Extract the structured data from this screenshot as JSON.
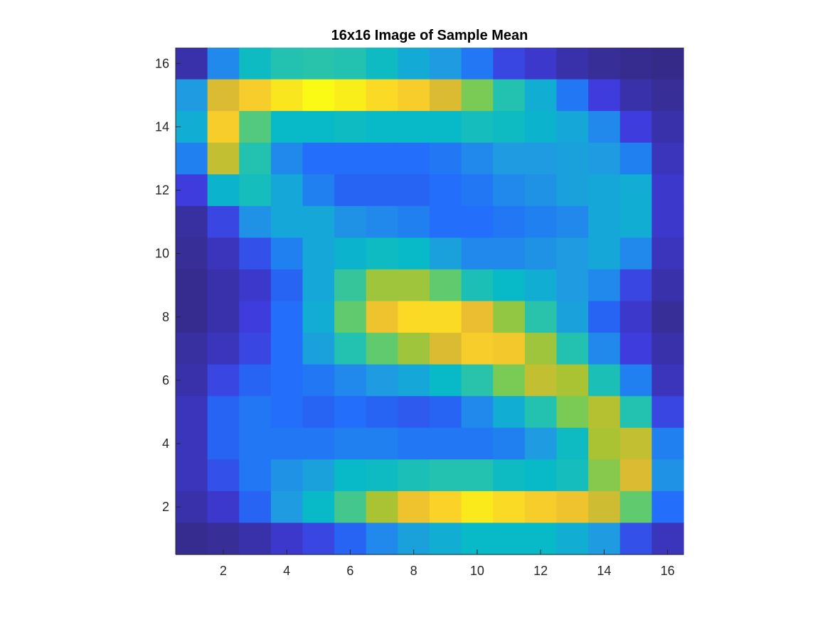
{
  "chart_data": {
    "type": "heatmap",
    "title": "16x16 Image of Sample Mean",
    "xlabel": "",
    "ylabel": "",
    "xlim": [
      0.5,
      16.5
    ],
    "ylim": [
      0.5,
      16.5
    ],
    "x_ticks": [
      2,
      4,
      6,
      8,
      10,
      12,
      14,
      16
    ],
    "y_ticks": [
      2,
      4,
      6,
      8,
      10,
      12,
      14,
      16
    ],
    "colormap": "parula",
    "value_range": [
      0,
      1
    ],
    "grid": false,
    "legend": "none",
    "rows_top_to_bottom_y": [
      16,
      15,
      14,
      13,
      12,
      11,
      10,
      9,
      8,
      7,
      6,
      5,
      4,
      3,
      2,
      1
    ],
    "values_top_to_bottom": [
      [
        0.04,
        0.26,
        0.42,
        0.48,
        0.5,
        0.48,
        0.42,
        0.35,
        0.3,
        0.22,
        0.12,
        0.08,
        0.04,
        0.02,
        0.01,
        0.0
      ],
      [
        0.3,
        0.78,
        0.88,
        0.95,
        1.0,
        0.97,
        0.92,
        0.88,
        0.78,
        0.62,
        0.48,
        0.36,
        0.22,
        0.1,
        0.04,
        0.02
      ],
      [
        0.36,
        0.88,
        0.56,
        0.4,
        0.4,
        0.42,
        0.4,
        0.4,
        0.4,
        0.44,
        0.42,
        0.38,
        0.34,
        0.26,
        0.1,
        0.04
      ],
      [
        0.24,
        0.74,
        0.48,
        0.26,
        0.2,
        0.2,
        0.2,
        0.2,
        0.22,
        0.26,
        0.3,
        0.3,
        0.32,
        0.3,
        0.24,
        0.06
      ],
      [
        0.1,
        0.38,
        0.44,
        0.34,
        0.24,
        0.18,
        0.18,
        0.18,
        0.2,
        0.22,
        0.26,
        0.28,
        0.32,
        0.34,
        0.36,
        0.08
      ],
      [
        0.03,
        0.12,
        0.28,
        0.34,
        0.34,
        0.28,
        0.26,
        0.24,
        0.2,
        0.2,
        0.22,
        0.24,
        0.26,
        0.34,
        0.36,
        0.08
      ],
      [
        0.02,
        0.06,
        0.14,
        0.24,
        0.34,
        0.38,
        0.42,
        0.4,
        0.32,
        0.26,
        0.26,
        0.28,
        0.3,
        0.34,
        0.26,
        0.06
      ],
      [
        0.01,
        0.04,
        0.08,
        0.18,
        0.34,
        0.52,
        0.68,
        0.68,
        0.58,
        0.46,
        0.4,
        0.36,
        0.3,
        0.26,
        0.12,
        0.04
      ],
      [
        0.01,
        0.04,
        0.1,
        0.2,
        0.36,
        0.58,
        0.84,
        0.92,
        0.92,
        0.82,
        0.66,
        0.5,
        0.32,
        0.18,
        0.08,
        0.02
      ],
      [
        0.03,
        0.06,
        0.12,
        0.2,
        0.32,
        0.48,
        0.58,
        0.68,
        0.78,
        0.88,
        0.86,
        0.68,
        0.48,
        0.26,
        0.1,
        0.04
      ],
      [
        0.04,
        0.12,
        0.18,
        0.2,
        0.22,
        0.26,
        0.3,
        0.34,
        0.4,
        0.5,
        0.62,
        0.74,
        0.7,
        0.46,
        0.24,
        0.06
      ],
      [
        0.06,
        0.18,
        0.22,
        0.2,
        0.18,
        0.2,
        0.18,
        0.16,
        0.18,
        0.26,
        0.36,
        0.48,
        0.62,
        0.72,
        0.48,
        0.12
      ],
      [
        0.06,
        0.18,
        0.22,
        0.22,
        0.22,
        0.24,
        0.24,
        0.22,
        0.22,
        0.22,
        0.24,
        0.3,
        0.42,
        0.7,
        0.74,
        0.24
      ],
      [
        0.06,
        0.14,
        0.22,
        0.28,
        0.32,
        0.4,
        0.42,
        0.46,
        0.48,
        0.48,
        0.42,
        0.4,
        0.44,
        0.64,
        0.78,
        0.28
      ],
      [
        0.04,
        0.08,
        0.18,
        0.3,
        0.4,
        0.54,
        0.7,
        0.84,
        0.9,
        0.96,
        0.92,
        0.88,
        0.84,
        0.76,
        0.58,
        0.2
      ],
      [
        0.01,
        0.02,
        0.04,
        0.08,
        0.12,
        0.18,
        0.26,
        0.32,
        0.36,
        0.4,
        0.4,
        0.4,
        0.36,
        0.3,
        0.14,
        0.06
      ]
    ]
  }
}
